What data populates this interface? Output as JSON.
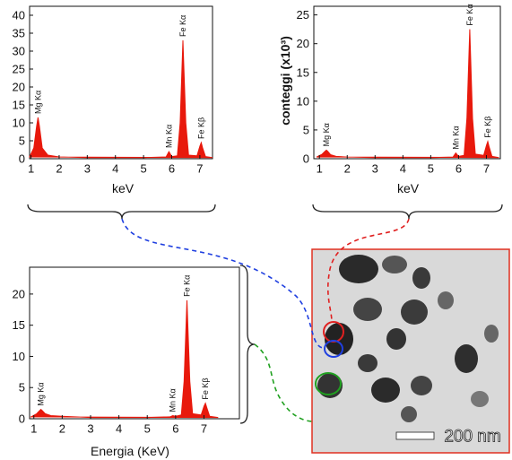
{
  "chart_data": [
    {
      "type": "area",
      "xlabel": "keV",
      "color": "#e8190c",
      "xlim": [
        0.95,
        7.45
      ],
      "ylim": [
        0,
        42.5
      ],
      "xticks": [
        1,
        2,
        3,
        4,
        5,
        6,
        7
      ],
      "yticks": [
        0,
        5,
        10,
        15,
        20,
        25,
        30,
        35,
        40
      ],
      "x": [
        0.95,
        1.1,
        1.2,
        1.25,
        1.3,
        1.4,
        1.6,
        2,
        3,
        4,
        5,
        5.8,
        5.9,
        6.0,
        6.2,
        6.3,
        6.4,
        6.5,
        6.6,
        6.9,
        7.0,
        7.05,
        7.1,
        7.2,
        7.45
      ],
      "values": [
        0.5,
        3,
        9,
        11.5,
        9,
        3,
        1,
        0.5,
        0.3,
        0.3,
        0.3,
        0.5,
        2,
        0.6,
        0.8,
        10,
        33,
        10,
        1,
        0.8,
        3.5,
        4.5,
        3,
        0.6,
        0.3
      ],
      "peaks": [
        {
          "label": "Mg Kα",
          "x": 1.25
        },
        {
          "label": "Mn Kα",
          "x": 5.9
        },
        {
          "label": "Fe Kα",
          "x": 6.4
        },
        {
          "label": "Fe Kβ",
          "x": 7.05
        }
      ]
    },
    {
      "type": "area",
      "xlabel": "keV",
      "ylabel": "conteggi (x10³)",
      "color": "#e8190c",
      "xlim": [
        0.8,
        7.5
      ],
      "ylim": [
        0,
        26.5
      ],
      "xticks": [
        1,
        2,
        3,
        4,
        5,
        6,
        7
      ],
      "yticks": [
        0,
        5,
        10,
        15,
        20,
        25
      ],
      "x": [
        0.9,
        1.1,
        1.2,
        1.25,
        1.3,
        1.4,
        1.6,
        2,
        3,
        4,
        5,
        5.8,
        5.9,
        6.0,
        6.2,
        6.3,
        6.4,
        6.5,
        6.6,
        6.9,
        7.0,
        7.05,
        7.1,
        7.2,
        7.45
      ],
      "values": [
        0.3,
        0.8,
        1.3,
        1.5,
        1.3,
        0.7,
        0.4,
        0.3,
        0.2,
        0.2,
        0.2,
        0.3,
        1,
        0.4,
        0.6,
        7,
        22.5,
        7,
        0.8,
        0.6,
        2.3,
        3,
        2,
        0.4,
        0.2
      ],
      "peaks": [
        {
          "label": "Mg Kα",
          "x": 1.25
        },
        {
          "label": "Mn Kα",
          "x": 5.9
        },
        {
          "label": "Fe Kα",
          "x": 6.4
        },
        {
          "label": "Fe Kβ",
          "x": 7.05
        }
      ]
    },
    {
      "type": "area",
      "xlabel": "Energia (KeV)",
      "color": "#e8190c",
      "xlim": [
        0.85,
        8.25
      ],
      "ylim": [
        0,
        24.3
      ],
      "xticks": [
        1,
        2,
        3,
        4,
        5,
        6,
        7
      ],
      "yticks": [
        0,
        5,
        10,
        15,
        20
      ],
      "x": [
        0.9,
        1.1,
        1.2,
        1.25,
        1.3,
        1.4,
        1.6,
        2,
        3,
        4,
        5,
        5.8,
        5.9,
        6.0,
        6.2,
        6.3,
        6.4,
        6.5,
        6.6,
        6.9,
        7.0,
        7.05,
        7.1,
        7.2,
        7.5
      ],
      "values": [
        0.3,
        0.8,
        1.3,
        1.5,
        1.3,
        0.8,
        0.5,
        0.4,
        0.2,
        0.2,
        0.2,
        0.3,
        0.5,
        0.4,
        0.6,
        6,
        19,
        6,
        0.8,
        0.6,
        2,
        2.5,
        1.8,
        0.4,
        0.2
      ],
      "peaks": [
        {
          "label": "Mg Kα",
          "x": 1.25
        },
        {
          "label": "Mn Kα",
          "x": 5.9
        },
        {
          "label": "Fe Kα",
          "x": 6.4
        },
        {
          "label": "Fe Kβ",
          "x": 7.05
        }
      ]
    }
  ],
  "image": {
    "scale_bar": "200 nm"
  }
}
